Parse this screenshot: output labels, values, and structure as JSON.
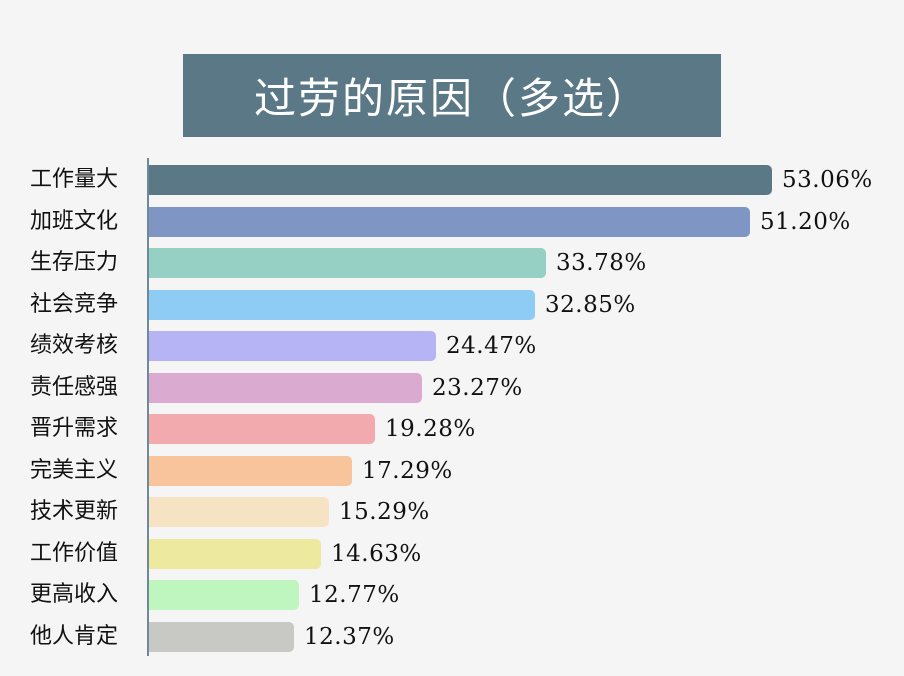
{
  "chart_data": {
    "type": "bar",
    "orientation": "horizontal",
    "title": "过劳的原因（多选）",
    "xlabel": "",
    "ylabel": "",
    "value_format": "percent",
    "grid": false,
    "legend": null,
    "categories": [
      "工作量大",
      "加班文化",
      "生存压力",
      "社会竞争",
      "绩效考核",
      "责任感强",
      "晋升需求",
      "完美主义",
      "技术更新",
      "工作价值",
      "更高收入",
      "他人肯定"
    ],
    "values": [
      53.06,
      51.2,
      33.78,
      32.85,
      24.47,
      23.27,
      19.28,
      17.29,
      15.29,
      14.63,
      12.77,
      12.37
    ],
    "value_labels": [
      "53.06%",
      "51.20%",
      "33.78%",
      "32.85%",
      "24.47%",
      "23.27%",
      "19.28%",
      "17.29%",
      "15.29%",
      "14.63%",
      "12.77%",
      "12.37%"
    ],
    "colors": [
      "#5b7887",
      "#7f96c4",
      "#96cfc4",
      "#8ecbf5",
      "#b6b4f5",
      "#dbaad1",
      "#f2aaae",
      "#f7c49c",
      "#f6e3c4",
      "#ede99e",
      "#bff5bf",
      "#c8c8c4"
    ]
  },
  "header": {
    "title": "过劳的原因（多选）",
    "title_bg": "#5b7887"
  },
  "rows": [
    {
      "label": "工作量大",
      "value": "53.06%",
      "pct": 53.06,
      "color": "#5b7887"
    },
    {
      "label": "加班文化",
      "value": "51.20%",
      "pct": 51.2,
      "color": "#7f96c4"
    },
    {
      "label": "生存压力",
      "value": "33.78%",
      "pct": 33.78,
      "color": "#96cfc4"
    },
    {
      "label": "社会竞争",
      "value": "32.85%",
      "pct": 32.85,
      "color": "#8ecbf5"
    },
    {
      "label": "绩效考核",
      "value": "24.47%",
      "pct": 24.47,
      "color": "#b6b4f5"
    },
    {
      "label": "责任感强",
      "value": "23.27%",
      "pct": 23.27,
      "color": "#dbaad1"
    },
    {
      "label": "晋升需求",
      "value": "19.28%",
      "pct": 19.28,
      "color": "#f2aaae"
    },
    {
      "label": "完美主义",
      "value": "17.29%",
      "pct": 17.29,
      "color": "#f7c49c"
    },
    {
      "label": "技术更新",
      "value": "15.29%",
      "pct": 15.29,
      "color": "#f6e3c4"
    },
    {
      "label": "工作价值",
      "value": "14.63%",
      "pct": 14.63,
      "color": "#ede99e"
    },
    {
      "label": "更高收入",
      "value": "12.77%",
      "pct": 12.77,
      "color": "#bff5bf"
    },
    {
      "label": "他人肯定",
      "value": "12.37%",
      "pct": 12.37,
      "color": "#c8c8c4"
    }
  ]
}
